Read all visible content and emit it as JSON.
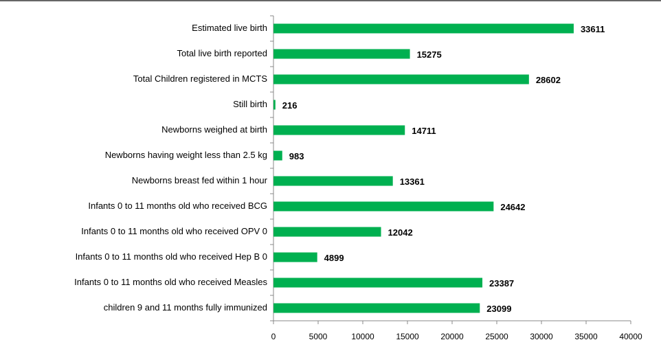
{
  "chart_data": {
    "type": "bar",
    "orientation": "horizontal",
    "categories": [
      "Estimated live birth",
      "Total live birth reported",
      "Total Children registered in MCTS",
      "Still birth",
      "Newborns weighed at birth",
      "Newborns having weight less than 2.5 kg",
      "Newborns breast fed within 1 hour",
      "Infants 0 to 11 months old who received BCG",
      "Infants 0 to 11 months old who received OPV 0",
      "Infants 0 to 11 months old who received Hep B 0",
      "Infants 0 to 11 months old who received Measles",
      "children 9 and 11 months fully immunized"
    ],
    "values": [
      33611,
      15275,
      28602,
      216,
      14711,
      983,
      13361,
      24642,
      12042,
      4899,
      23387,
      23099
    ],
    "color": "#00b050",
    "xlim": [
      0,
      40000
    ],
    "xticks": [
      0,
      5000,
      10000,
      15000,
      20000,
      25000,
      30000,
      35000,
      40000
    ]
  }
}
